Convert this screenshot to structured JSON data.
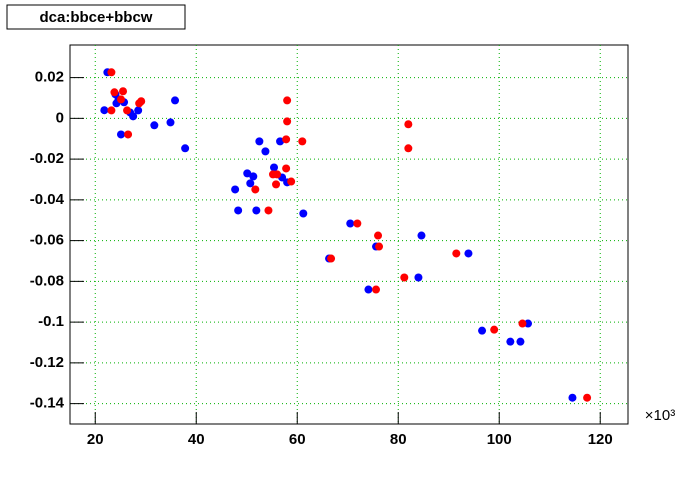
{
  "chart_data": {
    "type": "scatter",
    "title": "dca:bbce+bbcw",
    "x_multiplier": "×10³",
    "xlim": [
      15,
      125.5
    ],
    "ylim": [
      -0.15,
      0.036
    ],
    "xticks": [
      20,
      40,
      60,
      80,
      100,
      120
    ],
    "yticks": [
      0.02,
      0,
      -0.02,
      -0.04,
      -0.06,
      -0.08,
      -0.1,
      -0.12,
      -0.14
    ],
    "grid": true,
    "series": [
      {
        "color": "#0000ff",
        "x": [
          22.4,
          21.8,
          24.0,
          24.2,
          24.6,
          25.1,
          25.7,
          26.9,
          27.5,
          28.5,
          31.7,
          34.9,
          35.8,
          37.8,
          47.7,
          48.3,
          50.1,
          50.7,
          51.3,
          51.9,
          52.5,
          53.7,
          55.4,
          56.6,
          57.0,
          58.0,
          61.2,
          66.3,
          70.5,
          74.1,
          75.6,
          84.0,
          84.6,
          93.9,
          96.6,
          102.2,
          104.2,
          105.7,
          114.5
        ],
        "values": [
          0.0226,
          0.004,
          0.0118,
          0.0074,
          0.0093,
          -0.0079,
          0.0079,
          0.0029,
          0.001,
          0.0039,
          -0.0034,
          -0.002,
          0.0088,
          -0.0147,
          -0.0349,
          -0.0452,
          -0.027,
          -0.0319,
          -0.0285,
          -0.0452,
          -0.0113,
          -0.0162,
          -0.0241,
          -0.0113,
          -0.029,
          -0.0314,
          -0.0467,
          -0.0688,
          -0.0516,
          -0.084,
          -0.0629,
          -0.0781,
          -0.0575,
          -0.0663,
          -0.1042,
          -0.1096,
          -0.1096,
          -0.1007,
          -0.1371
        ]
      },
      {
        "color": "#ff0000",
        "x": [
          23.2,
          23.2,
          23.8,
          25.1,
          25.5,
          26.3,
          26.5,
          28.7,
          29.1,
          51.7,
          54.3,
          55.2,
          55.8,
          56.0,
          57.8,
          58.0,
          58.0,
          57.8,
          58.8,
          61.0,
          66.7,
          71.9,
          75.6,
          76.0,
          76.2,
          81.2,
          82.0,
          82.0,
          91.5,
          99.0,
          104.6,
          117.4
        ],
        "values": [
          0.0226,
          0.0039,
          0.0128,
          0.0093,
          0.0133,
          0.0039,
          -0.0079,
          0.0074,
          0.0084,
          -0.0349,
          -0.0452,
          -0.0275,
          -0.0324,
          -0.0275,
          -0.0103,
          -0.0015,
          0.0088,
          -0.0246,
          -0.031,
          -0.0113,
          -0.0688,
          -0.0516,
          -0.084,
          -0.0575,
          -0.0629,
          -0.0781,
          -0.0029,
          -0.0147,
          -0.0663,
          -0.1037,
          -0.1007,
          -0.1371
        ]
      }
    ]
  }
}
